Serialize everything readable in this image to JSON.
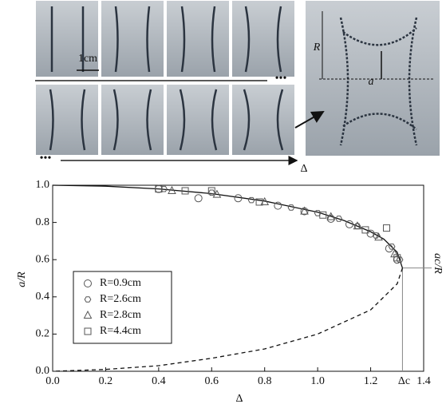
{
  "photos": {
    "scale_label": "1cm",
    "ellipsis": [
      "•••",
      "•••"
    ],
    "delta_label": "Δ",
    "radius_label": "R",
    "neck_label": "a"
  },
  "chart_data": {
    "type": "scatter",
    "xlabel": "Δ",
    "ylabel": "a/R",
    "y2label": "ac/R",
    "xlim": [
      0,
      1.4
    ],
    "ylim": [
      0,
      1
    ],
    "xticks": [
      {
        "value": 0,
        "label": "0.0"
      },
      0.2,
      0.4,
      0.6,
      0.8,
      {
        "value": 1,
        "label": "1.0"
      },
      1.2,
      1.4
    ],
    "yticks": [
      {
        "value": 0,
        "label": "0.0"
      },
      0.2,
      0.4,
      0.6,
      0.8,
      {
        "value": 1,
        "label": "1.0"
      }
    ],
    "legend": "lower-left",
    "color": "#555555",
    "series": [
      {
        "name": "R=0.9cm",
        "marker": "circle",
        "x": [
          0.4,
          0.55,
          0.7,
          0.85,
          0.95,
          1.05,
          1.12,
          1.2,
          1.27,
          1.3
        ],
        "values": [
          0.98,
          0.93,
          0.93,
          0.89,
          0.86,
          0.82,
          0.79,
          0.74,
          0.66,
          0.6
        ]
      },
      {
        "name": "R=2.6cm",
        "marker": "hexagon",
        "x": [
          0.42,
          0.6,
          0.75,
          0.9,
          1.0,
          1.08,
          1.15,
          1.22,
          1.28,
          1.31
        ],
        "values": [
          0.98,
          0.96,
          0.92,
          0.88,
          0.85,
          0.82,
          0.78,
          0.73,
          0.67,
          0.6
        ]
      },
      {
        "name": "R=2.8cm",
        "marker": "triangle",
        "x": [
          0.45,
          0.62,
          0.8,
          0.95,
          1.05,
          1.15,
          1.23,
          1.29
        ],
        "values": [
          0.97,
          0.95,
          0.91,
          0.86,
          0.83,
          0.78,
          0.72,
          0.63
        ]
      },
      {
        "name": "R=4.4cm",
        "marker": "square",
        "x": [
          0.4,
          0.5,
          0.6,
          0.78,
          1.02,
          1.18,
          1.26,
          1.3
        ],
        "values": [
          0.98,
          0.97,
          0.97,
          0.91,
          0.84,
          0.76,
          0.77,
          0.61
        ]
      }
    ],
    "curves": [
      {
        "style": "solid",
        "x": [
          0,
          0.2,
          0.4,
          0.6,
          0.8,
          1.0,
          1.1,
          1.2,
          1.25,
          1.3,
          1.32
        ],
        "values": [
          1.0,
          0.995,
          0.98,
          0.955,
          0.915,
          0.855,
          0.81,
          0.75,
          0.71,
          0.64,
          0.555
        ]
      },
      {
        "style": "dashed",
        "x": [
          1.32,
          1.3,
          1.2,
          1.0,
          0.8,
          0.6,
          0.4,
          0.2,
          0
        ],
        "values": [
          0.555,
          0.47,
          0.33,
          0.2,
          0.12,
          0.07,
          0.03,
          0.01,
          0
        ]
      }
    ],
    "critical": {
      "x": 1.32,
      "y": 0.555,
      "label": "Δc"
    }
  }
}
